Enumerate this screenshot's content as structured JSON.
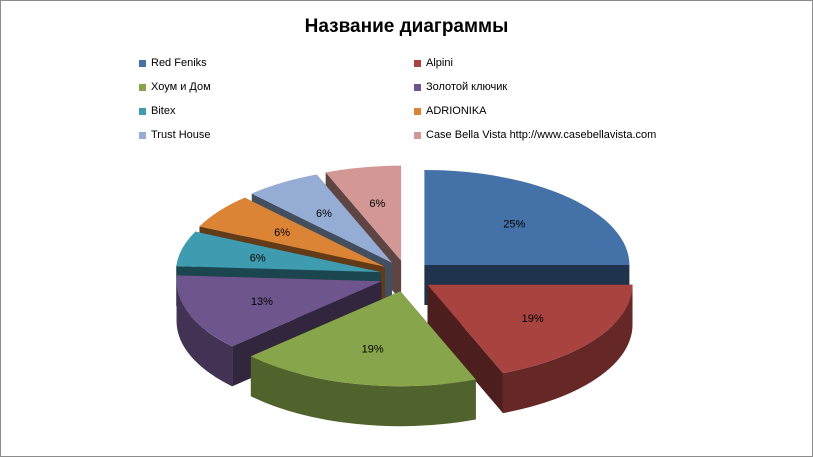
{
  "chart_data": {
    "type": "pie",
    "title": "Название диаграммы",
    "style": "3d-exploded",
    "legend_position": "top",
    "series": [
      {
        "name": "Red Feniks",
        "value": 25,
        "label": "25%",
        "color": "#4472a8"
      },
      {
        "name": "Alpini",
        "value": 19,
        "label": "19%",
        "color": "#a84340"
      },
      {
        "name": "Хоум и Дом",
        "value": 19,
        "label": "19%",
        "color": "#87a54a"
      },
      {
        "name": "Золотой ключик",
        "value": 13,
        "label": "13%",
        "color": "#6e558d"
      },
      {
        "name": "Bitex",
        "value": 6,
        "label": "6%",
        "color": "#3f9bb0"
      },
      {
        "name": "ADRIONIKA",
        "value": 6,
        "label": "6%",
        "color": "#dc8435"
      },
      {
        "name": "Trust House",
        "value": 6,
        "label": "6%",
        "color": "#95add4"
      },
      {
        "name": "Case Bella Vista http://www.casebellavista.com",
        "value": 6,
        "label": "6%",
        "color": "#d39796"
      }
    ]
  }
}
